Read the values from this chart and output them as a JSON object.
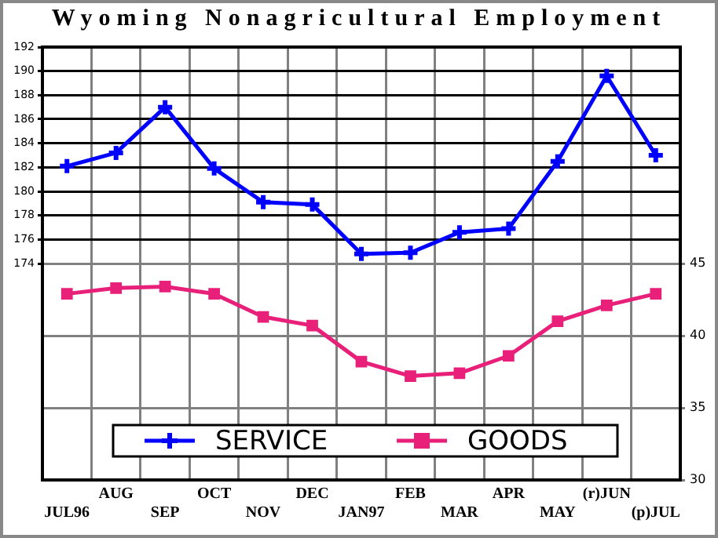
{
  "chart_data": {
    "type": "line",
    "title": "Wyoming Nonagricultural Employment",
    "categories": [
      "JUL96",
      "AUG",
      "SEP",
      "OCT",
      "NOV",
      "DEC",
      "JAN97",
      "FEB",
      "MAR",
      "APR",
      "MAY",
      "(r)JUN",
      "(p)JUL"
    ],
    "series": [
      {
        "name": "SERVICE",
        "color": "#0000ff",
        "marker": "cross",
        "axis": "y",
        "values": [
          182.1,
          183.2,
          187.0,
          181.9,
          179.1,
          178.9,
          174.8,
          174.9,
          176.6,
          176.9,
          182.5,
          189.6,
          183.0
        ]
      },
      {
        "name": "GOODS",
        "color": "#e8207a",
        "marker": "square",
        "axis": "y2",
        "values": [
          42.9,
          43.3,
          43.4,
          42.9,
          41.3,
          40.7,
          38.2,
          37.2,
          37.4,
          38.6,
          41.0,
          42.1,
          42.9
        ]
      }
    ],
    "ylim": [
      156,
      192
    ],
    "yticks": [
      174,
      176,
      178,
      180,
      182,
      184,
      186,
      188,
      190,
      192
    ],
    "y2lim": [
      30,
      60
    ],
    "y2ticks": [
      30,
      35,
      40,
      45
    ],
    "grid": true,
    "legend": "bottom"
  }
}
